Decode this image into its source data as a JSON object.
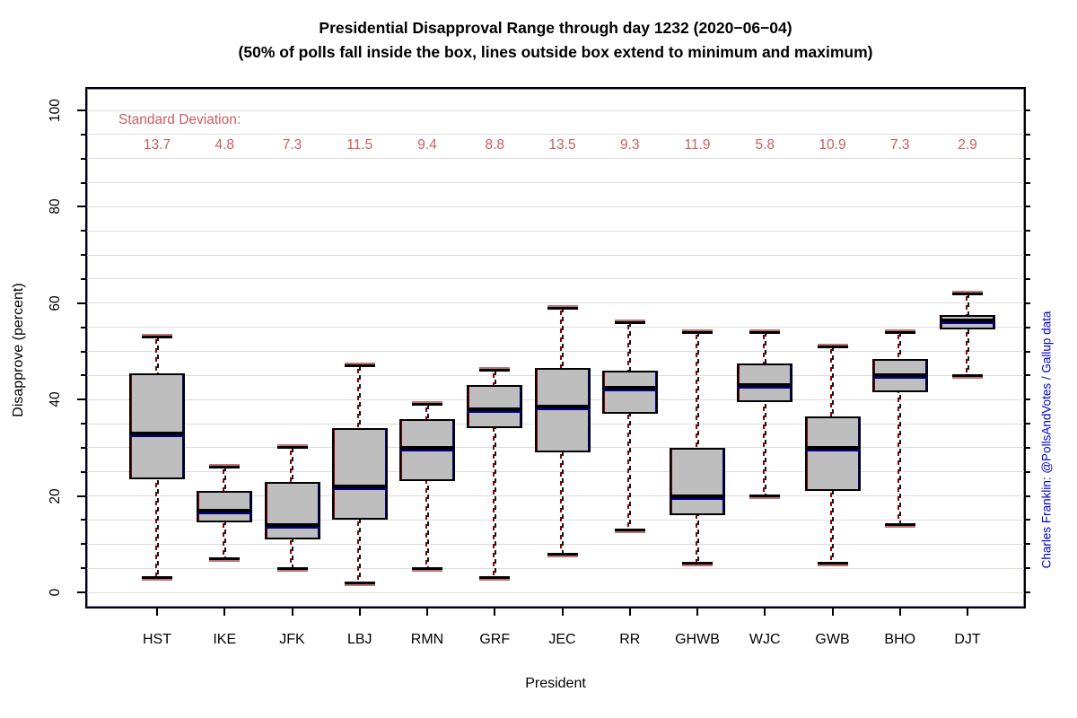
{
  "title": "Presidential Disapproval Range through day 1232 (2020−06−04)",
  "subtitle": "(50% of polls fall inside the box, lines outside box extend to minimum and maximum)",
  "sd_label": "Standard Deviation:",
  "credit": "Charles Franklin: @PollsAndVotes / Gallup data",
  "colors": {
    "box_fill": "#BEBEBE",
    "line": "#000000",
    "accent_red": "#8B0000",
    "accent_blue": "#00008B",
    "sd_text": "#CD5C5C",
    "credit_text": "#0000CD",
    "grid": "#DCDCDC"
  },
  "chart_data": {
    "type": "boxplot",
    "title": "Presidential Disapproval Range through day 1232 (2020−06−04)",
    "subtitle": "(50% of polls fall inside the box, lines outside box extend to minimum and maximum)",
    "xlabel": "President",
    "ylabel": "Disapprove (percent)",
    "grid": "horizontal, every 5 units",
    "y_ticks_major": [
      0,
      20,
      40,
      60,
      80,
      100
    ],
    "y_minor_step": 5,
    "ylim": [
      0,
      100
    ],
    "ylim_display": [
      -3.72,
      104.47
    ],
    "categories": [
      "HST",
      "IKE",
      "JFK",
      "LBJ",
      "RMN",
      "GRF",
      "JEC",
      "RR",
      "GHWB",
      "WJC",
      "GWB",
      "BHO",
      "DJT"
    ],
    "standard_deviations": [
      13.7,
      4.8,
      7.3,
      11.5,
      9.4,
      8.8,
      13.5,
      9.3,
      11.9,
      5.8,
      10.9,
      7.3,
      2.9
    ],
    "series": [
      {
        "name": "HST",
        "min": 3,
        "q1": 23.5,
        "median": 33,
        "q3": 45.5,
        "max": 53,
        "sd": 13.7
      },
      {
        "name": "IKE",
        "min": 7,
        "q1": 14.5,
        "median": 17,
        "q3": 21,
        "max": 26,
        "sd": 4.8
      },
      {
        "name": "JFK",
        "min": 5,
        "q1": 11,
        "median": 14,
        "q3": 23,
        "max": 30,
        "sd": 7.3
      },
      {
        "name": "LBJ",
        "min": 2,
        "q1": 15,
        "median": 22,
        "q3": 34,
        "max": 47,
        "sd": 11.5
      },
      {
        "name": "RMN",
        "min": 5,
        "q1": 23,
        "median": 30,
        "q3": 36,
        "max": 39,
        "sd": 9.4
      },
      {
        "name": "GRF",
        "min": 3,
        "q1": 34,
        "median": 38,
        "q3": 43,
        "max": 46,
        "sd": 8.8
      },
      {
        "name": "JEC",
        "min": 8,
        "q1": 29,
        "median": 38.5,
        "q3": 46.5,
        "max": 59,
        "sd": 13.5
      },
      {
        "name": "RR",
        "min": 13,
        "q1": 37,
        "median": 42.5,
        "q3": 46,
        "max": 56,
        "sd": 9.3
      },
      {
        "name": "GHWB",
        "min": 6,
        "q1": 16,
        "median": 20,
        "q3": 30,
        "max": 54,
        "sd": 11.9
      },
      {
        "name": "WJC",
        "min": 20,
        "q1": 39.5,
        "median": 43,
        "q3": 47.5,
        "max": 54,
        "sd": 5.8
      },
      {
        "name": "GWB",
        "min": 6,
        "q1": 21,
        "median": 30,
        "q3": 36.5,
        "max": 51,
        "sd": 10.9
      },
      {
        "name": "BHO",
        "min": 14,
        "q1": 41.5,
        "median": 45,
        "q3": 48.5,
        "max": 54,
        "sd": 7.3
      },
      {
        "name": "DJT",
        "min": 45,
        "q1": 54.5,
        "median": 56.5,
        "q3": 57.5,
        "max": 62,
        "sd": 2.9
      }
    ]
  }
}
